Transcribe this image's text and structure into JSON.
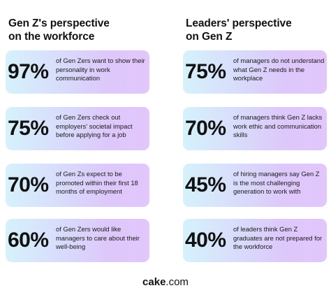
{
  "left": {
    "heading_line1": "Gen Z's perspective",
    "heading_line2": "on the workforce",
    "cards": [
      {
        "pct": "97%",
        "desc": "of Gen Zers want to show their personality in work communication"
      },
      {
        "pct": "75%",
        "desc": "of Gen Zers check out employers' societal impact before applying for a job"
      },
      {
        "pct": "70%",
        "desc": "of Gen Zs expect to be promoted within their first 18 months of employment"
      },
      {
        "pct": "60%",
        "desc": "of Gen Zers would like managers to care about their well-being"
      }
    ]
  },
  "right": {
    "heading_line1": "Leaders' perspective",
    "heading_line2": "on Gen Z",
    "cards": [
      {
        "pct": "75%",
        "desc": "of managers do not understand what Gen Z needs in the workplace"
      },
      {
        "pct": "70%",
        "desc": "of managers think Gen Z lacks work ethic and communication skills"
      },
      {
        "pct": "45%",
        "desc": "of hiring managers say Gen Z is the most challenging generation to work with"
      },
      {
        "pct": "40%",
        "desc": "of leaders think Gen Z graduates are not prepared for the workforce"
      }
    ]
  },
  "brand": {
    "name": "cake",
    "suffix": ".com"
  }
}
